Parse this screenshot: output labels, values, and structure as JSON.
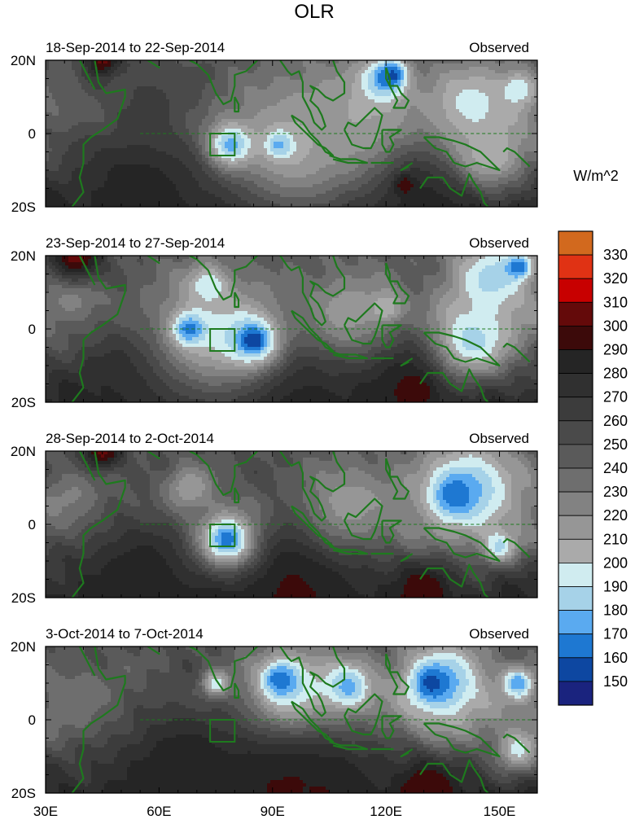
{
  "figure": {
    "title": "OLR",
    "colorbar_unit": "W/m^2"
  },
  "colorbar": {
    "levels": [
      150,
      160,
      170,
      180,
      190,
      200,
      210,
      220,
      230,
      240,
      250,
      260,
      270,
      280,
      290,
      300,
      310,
      320,
      330
    ],
    "colors": [
      "#1a237e",
      "#0d47a1",
      "#1e78d2",
      "#5aaaf0",
      "#a6d2e8",
      "#d0ecf0",
      "#aaaaaa",
      "#969696",
      "#828282",
      "#6e6e6e",
      "#5a5a5a",
      "#4a4a4a",
      "#3c3c3c",
      "#303030",
      "#252525",
      "#3c0a0a",
      "#640a0a",
      "#c80000",
      "#e03214",
      "#d2691e"
    ]
  },
  "overlay": {
    "coastline_color": "#1e7a1e",
    "box_color": "#1e7a1e",
    "box": {
      "lon": [
        73.5,
        80
      ],
      "lat": [
        -6,
        0
      ]
    },
    "equator_dashed": true
  },
  "chart_data": [
    {
      "type": "heatmap",
      "title": "18-Sep-2014 to 22-Sep-2014",
      "label_right": "Observed",
      "x_ticks": [
        "30E",
        "60E",
        "90E",
        "120E",
        "150E"
      ],
      "y_ticks": [
        "20N",
        "0",
        "20S"
      ],
      "xlim": [
        30,
        160
      ],
      "ylim": [
        -20,
        20
      ],
      "features": [
        {
          "lon": 38,
          "lat": -4,
          "r": 8,
          "olr": 250
        },
        {
          "lon": 55,
          "lat": -14,
          "r": 22,
          "olr": 285
        },
        {
          "lon": 90,
          "lat": -14,
          "r": 24,
          "olr": 292
        },
        {
          "lon": 125,
          "lat": -14,
          "r": 16,
          "olr": 290
        },
        {
          "lon": 58,
          "lat": 8,
          "r": 12,
          "olr": 265
        },
        {
          "lon": 95,
          "lat": -3,
          "r": 22,
          "olr": 205
        },
        {
          "lon": 79,
          "lat": -3,
          "r": 7,
          "olr": 175
        },
        {
          "lon": 92,
          "lat": -3,
          "r": 4,
          "olr": 170
        },
        {
          "lon": 112,
          "lat": 5,
          "r": 18,
          "olr": 210
        },
        {
          "lon": 120,
          "lat": 15,
          "r": 7,
          "olr": 165
        },
        {
          "lon": 122,
          "lat": 16,
          "r": 3,
          "olr": 155
        },
        {
          "lon": 143,
          "lat": 8,
          "r": 14,
          "olr": 195
        },
        {
          "lon": 155,
          "lat": 12,
          "r": 6,
          "olr": 190
        },
        {
          "lon": 148,
          "lat": -6,
          "r": 10,
          "olr": 200
        },
        {
          "lon": 45,
          "lat": 20,
          "r": 5,
          "olr": 305
        },
        {
          "lon": 125,
          "lat": -14,
          "r": 3,
          "olr": 300
        },
        {
          "lon": 68,
          "lat": 14,
          "r": 4,
          "olr": 260
        }
      ]
    },
    {
      "type": "heatmap",
      "title": "23-Sep-2014 to 27-Sep-2014",
      "label_right": "Observed",
      "x_ticks": [
        "30E",
        "60E",
        "90E",
        "120E",
        "150E"
      ],
      "y_ticks": [
        "20N",
        "0",
        "20S"
      ],
      "xlim": [
        30,
        160
      ],
      "ylim": [
        -20,
        20
      ],
      "features": [
        {
          "lon": 38,
          "lat": 8,
          "r": 8,
          "olr": 215
        },
        {
          "lon": 55,
          "lat": -14,
          "r": 22,
          "olr": 285
        },
        {
          "lon": 90,
          "lat": -15,
          "r": 24,
          "olr": 292
        },
        {
          "lon": 125,
          "lat": -13,
          "r": 16,
          "olr": 290
        },
        {
          "lon": 75,
          "lat": -1,
          "r": 20,
          "olr": 200
        },
        {
          "lon": 68,
          "lat": 0,
          "r": 5,
          "olr": 165
        },
        {
          "lon": 85,
          "lat": -3,
          "r": 8,
          "olr": 165
        },
        {
          "lon": 85,
          "lat": -3,
          "r": 3,
          "olr": 150
        },
        {
          "lon": 73,
          "lat": 12,
          "r": 6,
          "olr": 190
        },
        {
          "lon": 110,
          "lat": 5,
          "r": 14,
          "olr": 215
        },
        {
          "lon": 148,
          "lat": 14,
          "r": 13,
          "olr": 185
        },
        {
          "lon": 155,
          "lat": 17,
          "r": 4,
          "olr": 160
        },
        {
          "lon": 143,
          "lat": -3,
          "r": 12,
          "olr": 185
        },
        {
          "lon": 38,
          "lat": 20,
          "r": 8,
          "olr": 305
        },
        {
          "lon": 128,
          "lat": -17,
          "r": 5,
          "olr": 300
        },
        {
          "lon": 120,
          "lat": 6,
          "r": 5,
          "olr": 200
        }
      ]
    },
    {
      "type": "heatmap",
      "title": "28-Sep-2014 to 2-Oct-2014",
      "label_right": "Observed",
      "x_ticks": [
        "30E",
        "60E",
        "90E",
        "120E",
        "150E"
      ],
      "y_ticks": [
        "20N",
        "0",
        "20S"
      ],
      "xlim": [
        30,
        160
      ],
      "ylim": [
        -20,
        20
      ],
      "features": [
        {
          "lon": 38,
          "lat": 6,
          "r": 9,
          "olr": 220
        },
        {
          "lon": 55,
          "lat": -14,
          "r": 22,
          "olr": 285
        },
        {
          "lon": 95,
          "lat": -15,
          "r": 24,
          "olr": 292
        },
        {
          "lon": 78,
          "lat": -4,
          "r": 10,
          "olr": 190
        },
        {
          "lon": 78,
          "lat": -4,
          "r": 5,
          "olr": 170
        },
        {
          "lon": 78,
          "lat": -4,
          "r": 2,
          "olr": 160
        },
        {
          "lon": 68,
          "lat": 10,
          "r": 7,
          "olr": 210
        },
        {
          "lon": 110,
          "lat": 6,
          "r": 14,
          "olr": 215
        },
        {
          "lon": 142,
          "lat": 10,
          "r": 16,
          "olr": 180
        },
        {
          "lon": 138,
          "lat": 8,
          "r": 6,
          "olr": 160
        },
        {
          "lon": 150,
          "lat": -6,
          "r": 5,
          "olr": 185
        },
        {
          "lon": 45,
          "lat": 20,
          "r": 6,
          "olr": 305
        },
        {
          "lon": 130,
          "lat": -18,
          "r": 8,
          "olr": 300
        }
      ]
    },
    {
      "type": "heatmap",
      "title": "3-Oct-2014 to 7-Oct-2014",
      "label_right": "Observed",
      "x_ticks": [
        "30E",
        "60E",
        "90E",
        "120E",
        "150E"
      ],
      "y_ticks": [
        "20N",
        "0",
        "20S"
      ],
      "xlim": [
        30,
        160
      ],
      "ylim": [
        -20,
        20
      ],
      "features": [
        {
          "lon": 40,
          "lat": 5,
          "r": 10,
          "olr": 230
        },
        {
          "lon": 65,
          "lat": -12,
          "r": 22,
          "olr": 285
        },
        {
          "lon": 95,
          "lat": -14,
          "r": 24,
          "olr": 292
        },
        {
          "lon": 95,
          "lat": 9,
          "r": 14,
          "olr": 190
        },
        {
          "lon": 92,
          "lat": 11,
          "r": 5,
          "olr": 160
        },
        {
          "lon": 110,
          "lat": 9,
          "r": 8,
          "olr": 175
        },
        {
          "lon": 135,
          "lat": 10,
          "r": 14,
          "olr": 175
        },
        {
          "lon": 132,
          "lat": 10,
          "r": 5,
          "olr": 155
        },
        {
          "lon": 155,
          "lat": 10,
          "r": 5,
          "olr": 170
        },
        {
          "lon": 155,
          "lat": -8,
          "r": 7,
          "olr": 195
        },
        {
          "lon": 75,
          "lat": 10,
          "r": 4,
          "olr": 190
        },
        {
          "lon": 130,
          "lat": -18,
          "r": 8,
          "olr": 300
        }
      ]
    }
  ]
}
